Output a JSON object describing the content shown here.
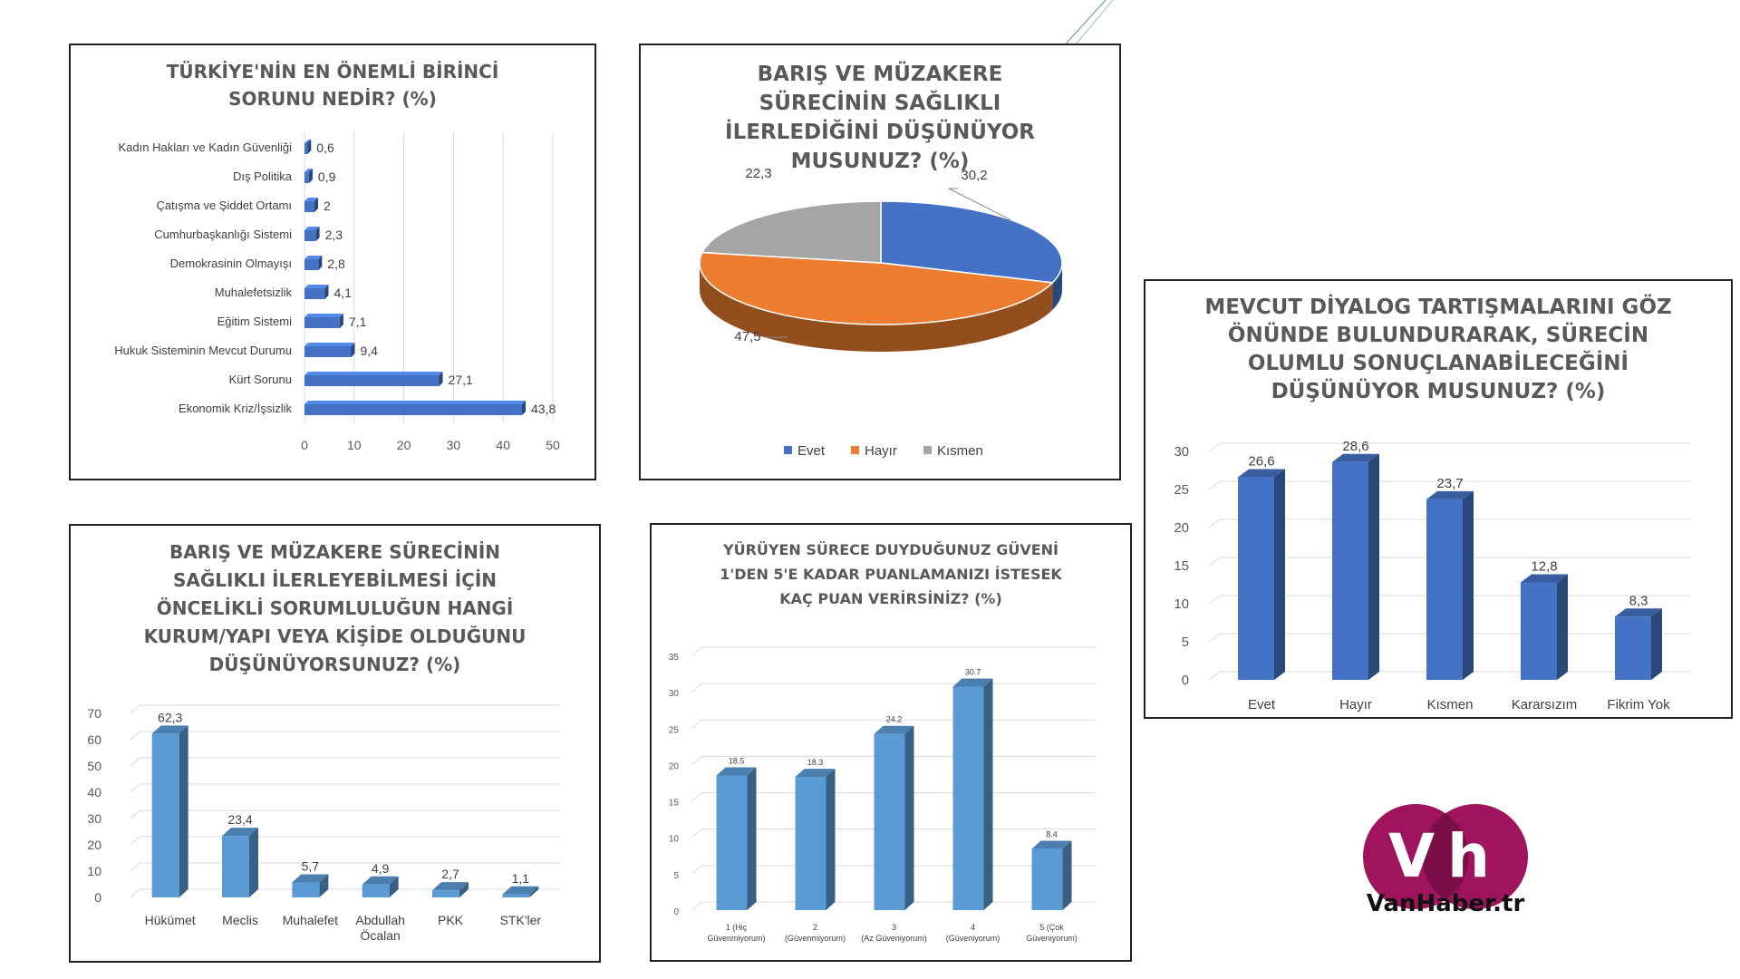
{
  "brand": {
    "logo_letters": "Vh",
    "name": "VanHaber.tr",
    "logo_color": "#a0145e"
  },
  "colors": {
    "blue": "#4472c4",
    "orange": "#ed7d31",
    "gray": "#a5a5a5",
    "lightblue": "#5b9bd5"
  },
  "chart_data": [
    {
      "id": "c1",
      "type": "bar",
      "orientation": "horizontal",
      "title": "TÜRKİYE'NİN EN ÖNEMLİ BİRİNCİ SORUNU NEDİR? (%)",
      "categories": [
        "Kadın Hakları ve Kadın Güvenliği",
        "Dış Politika",
        "Çatışma ve Şiddet Ortamı",
        "Cumhurbaşkanlığı Sistemi",
        "Demokrasinin Olmayışı",
        "Muhalefetsizlik",
        "Eğitim Sistemi",
        "Hukuk Sisteminin Mevcut Durumu",
        "Kürt Sorunu",
        "Ekonomik Kriz/İşsizlik"
      ],
      "values": [
        0.6,
        0.9,
        2,
        2.3,
        2.8,
        4.1,
        7.1,
        9.4,
        27.1,
        43.8
      ],
      "value_labels": [
        "0,6",
        "0,9",
        "2",
        "2,3",
        "2,8",
        "4,1",
        "7,1",
        "9,4",
        "27,1",
        "43,8"
      ],
      "xlim": [
        0,
        50
      ],
      "ticks": [
        0,
        10,
        20,
        30,
        40,
        50
      ],
      "tick_labels": [
        "0",
        "10",
        "20",
        "30",
        "40",
        "50"
      ],
      "grid": true
    },
    {
      "id": "c2",
      "type": "pie",
      "title": "BARIŞ VE MÜZAKERE SÜRECİNİN SAĞLIKLI İLERLEDİĞİNİ DÜŞÜNÜYOR MUSUNUZ? (%)",
      "categories": [
        "Evet",
        "Hayır",
        "Kısmen"
      ],
      "values": [
        30.2,
        47.5,
        22.3
      ],
      "value_labels": [
        "30,2",
        "47,5",
        "22,3"
      ],
      "legend": "bottom"
    },
    {
      "id": "c3",
      "type": "bar",
      "title": "MEVCUT DİYALOG TARTIŞMALARINI GÖZ ÖNÜNDE BULUNDURARAK, SÜRECİN OLUMLU SONUÇLANABİLECEĞİNİ DÜŞÜNÜYOR MUSUNUZ? (%)",
      "categories": [
        "Evet",
        "Hayır",
        "Kısmen",
        "Kararsızım",
        "Fikrim Yok"
      ],
      "values": [
        26.6,
        28.6,
        23.7,
        12.8,
        8.3
      ],
      "value_labels": [
        "26,6",
        "28,6",
        "23,7",
        "12,8",
        "8,3"
      ],
      "ylim": [
        0,
        30
      ],
      "ticks": [
        0,
        5,
        10,
        15,
        20,
        25,
        30
      ],
      "tick_labels": [
        "0",
        "5",
        "10",
        "15",
        "20",
        "25",
        "30"
      ],
      "grid": true
    },
    {
      "id": "c4",
      "type": "bar",
      "title": "BARIŞ VE MÜZAKERE SÜRECİNİN SAĞLIKLI İLERLEYEBİLMESİ İÇİN ÖNCELİKLİ SORUMLULUĞUN HANGİ KURUM/YAPI VEYA KİŞİDE OLDUĞUNU DÜŞÜNÜYORSUNUZ? (%)",
      "categories": [
        "Hükümet",
        "Meclis",
        "Muhalefet",
        "Abdullah Öcalan",
        "PKK",
        "STK'ler"
      ],
      "values": [
        62.3,
        23.4,
        5.7,
        4.9,
        2.7,
        1.1
      ],
      "value_labels": [
        "62,3",
        "23,4",
        "5,7",
        "4,9",
        "2,7",
        "1,1"
      ],
      "ylim": [
        0,
        70
      ],
      "ticks": [
        0,
        10,
        20,
        30,
        40,
        50,
        60,
        70
      ],
      "tick_labels": [
        "0",
        "10",
        "20",
        "30",
        "40",
        "50",
        "60",
        "70"
      ],
      "grid": true
    },
    {
      "id": "c5",
      "type": "bar",
      "title": "YÜRÜYEN SÜRECE DUYDUĞUNUZ GÜVENİ 1'DEN 5'E KADAR PUANLAMANIZI İSTESEK KAÇ PUAN VERİRSİNİZ? (%)",
      "categories": [
        "1 (Hiç Güvenmiyorum)",
        "2 (Güvenmiyorum)",
        "3 (Az Güveniyorum)",
        "4 (Güveniyorum)",
        "5 (Çok Güveniyorum)"
      ],
      "values": [
        18.5,
        18.3,
        24.2,
        30.7,
        8.4
      ],
      "value_labels": [
        "18.5",
        "18.3",
        "24.2",
        "30.7",
        "8.4"
      ],
      "ylim": [
        0,
        35
      ],
      "ticks": [
        0,
        5,
        10,
        15,
        20,
        25,
        30,
        35
      ],
      "tick_labels": [
        "0",
        "5",
        "10",
        "15",
        "20",
        "25",
        "30",
        "35"
      ],
      "grid": true
    }
  ]
}
